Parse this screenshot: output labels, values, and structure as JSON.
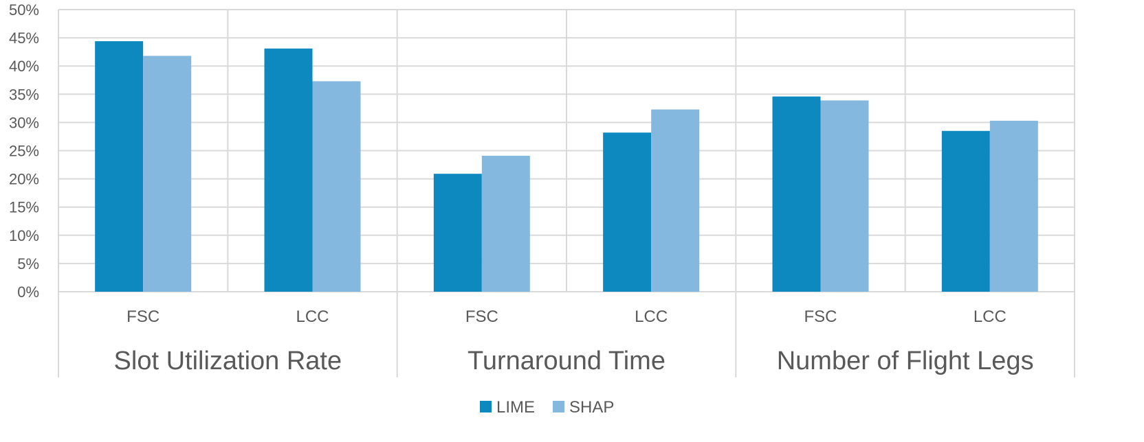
{
  "chart_data": {
    "type": "bar",
    "title": "",
    "xlabel": "",
    "ylabel": "",
    "ylim": [
      0,
      50
    ],
    "yticks": [
      "0%",
      "5%",
      "10%",
      "15%",
      "20%",
      "25%",
      "30%",
      "35%",
      "40%",
      "45%",
      "50%"
    ],
    "grid": true,
    "legend_position": "bottom",
    "groups": [
      "Slot Utilization Rate",
      "Turnaround Time",
      "Number of Flight Legs"
    ],
    "categories": [
      "FSC",
      "LCC",
      "FSC",
      "LCC",
      "FSC",
      "LCC"
    ],
    "series": [
      {
        "name": "LIME",
        "color": "#0E89BF",
        "values": [
          44.4,
          43.1,
          20.9,
          28.2,
          34.6,
          28.5
        ]
      },
      {
        "name": "SHAP",
        "color": "#85B8DF",
        "values": [
          41.8,
          37.3,
          24.1,
          32.3,
          33.9,
          30.3
        ]
      }
    ]
  }
}
